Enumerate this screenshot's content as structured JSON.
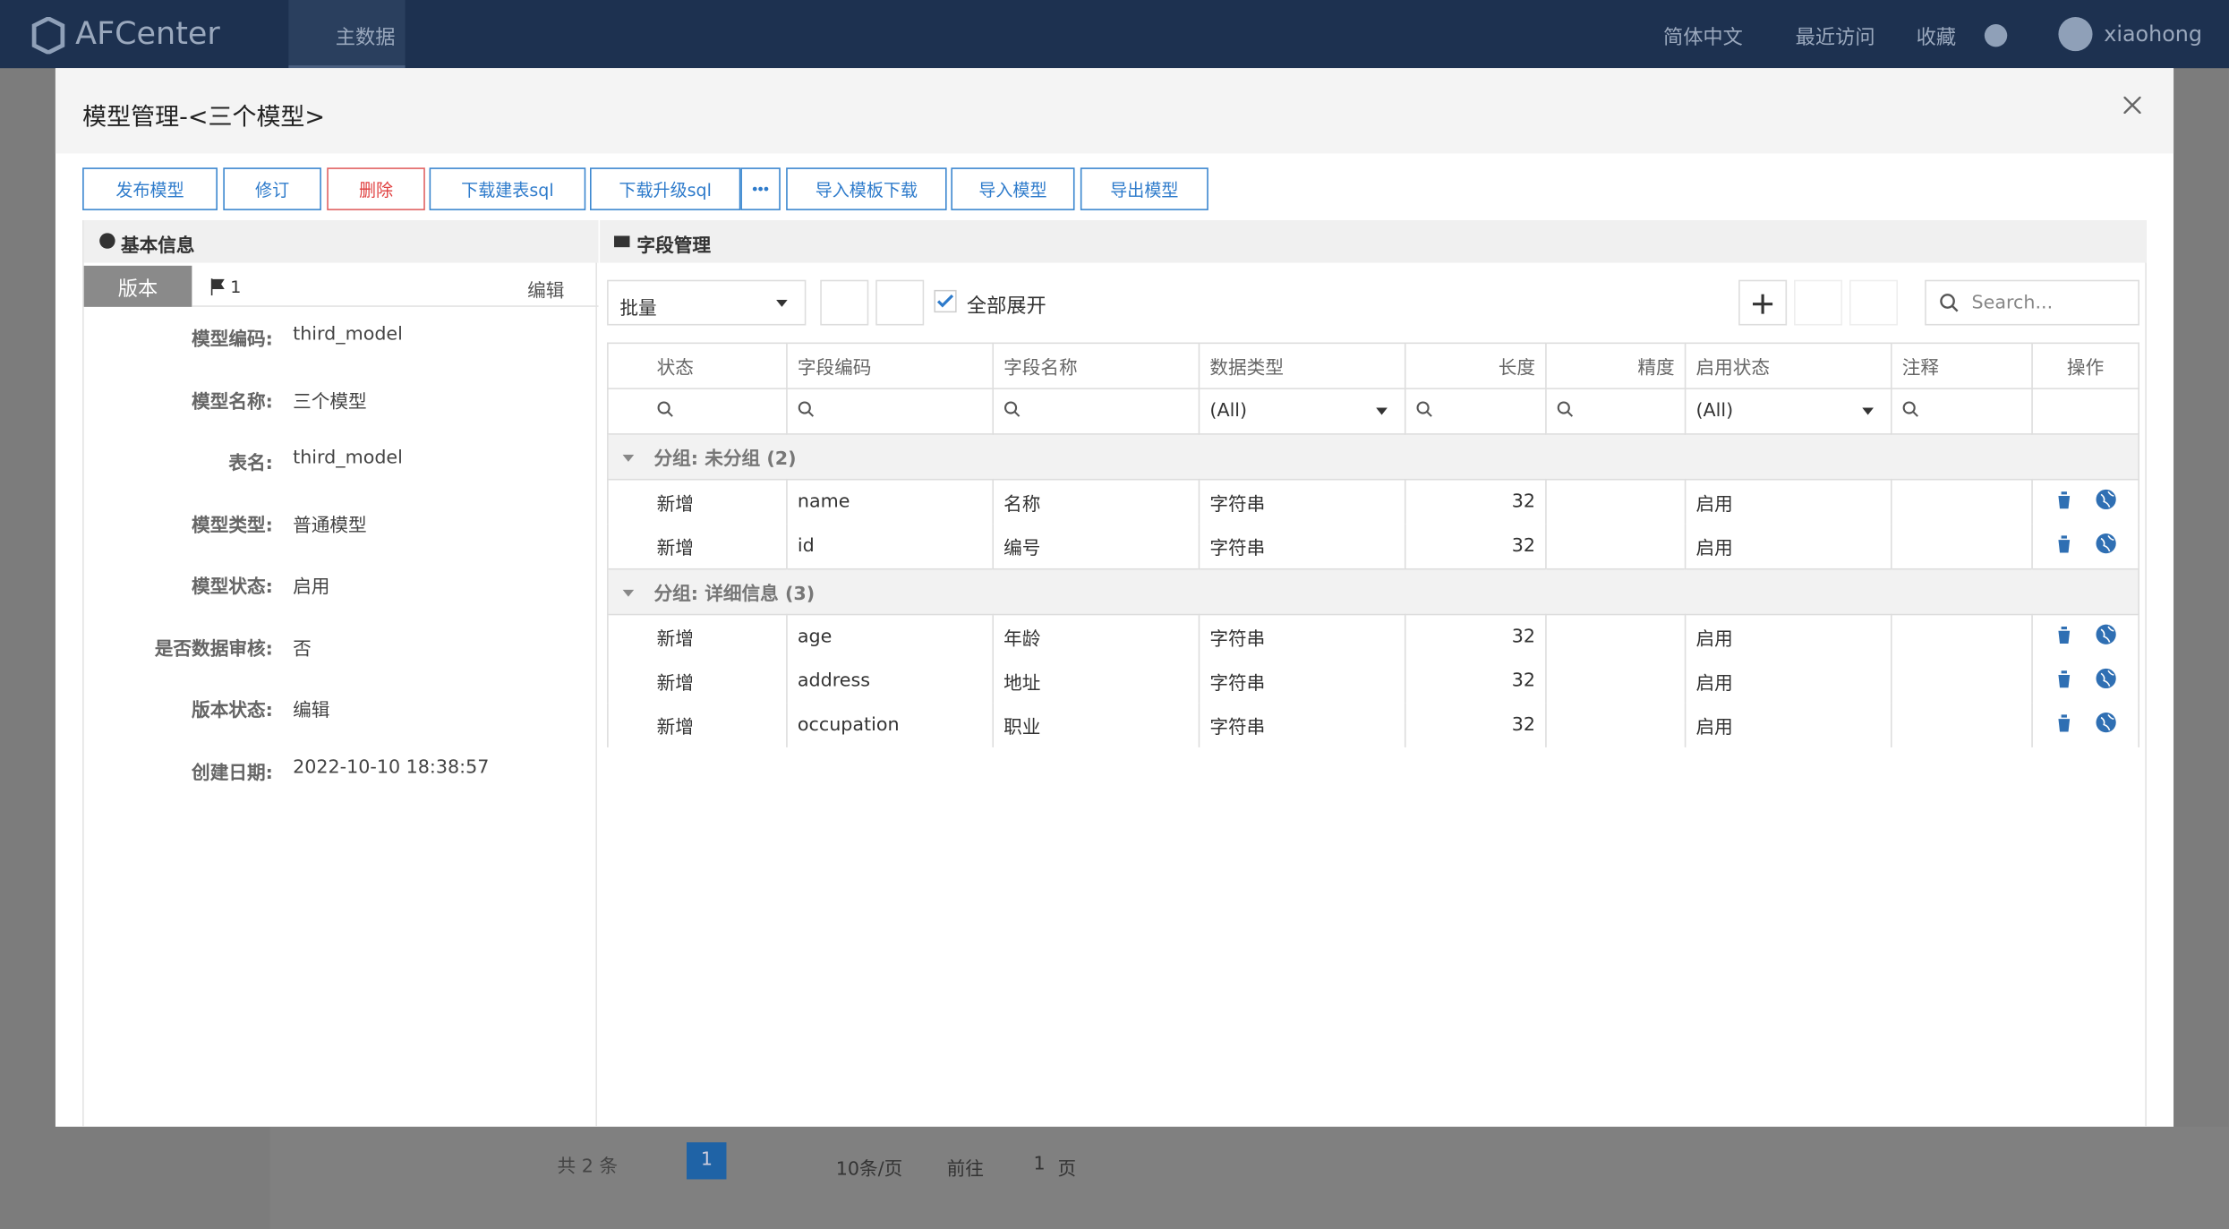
{
  "header": {
    "logo": "AFCenter",
    "nav": "主数据",
    "language": "简体中文",
    "recent": "最近访问",
    "favorites": "收藏",
    "user": "xiaohong"
  },
  "background_pagination": {
    "total": "共 2 条",
    "page": "1",
    "page_size": "10条/页",
    "goto": "前往",
    "goto_page": "1",
    "page_unit": "页"
  },
  "modal": {
    "title": "模型管理-<三个模型>",
    "toolbar": [
      "发布模型",
      "修订",
      "删除",
      "下载建表sql",
      "下载升级sql",
      "导入模板下载",
      "导入模型",
      "导出模型"
    ],
    "basic_info": {
      "title": "基本信息",
      "version_tab": "版本",
      "version": "1",
      "edit": "编辑",
      "fields": [
        {
          "label": "模型编码:",
          "value": "third_model"
        },
        {
          "label": "模型名称:",
          "value": "三个模型"
        },
        {
          "label": "表名:",
          "value": "third_model"
        },
        {
          "label": "模型类型:",
          "value": "普通模型"
        },
        {
          "label": "模型状态:",
          "value": "启用"
        },
        {
          "label": "是否数据审核:",
          "value": "否"
        },
        {
          "label": "版本状态:",
          "value": "编辑"
        },
        {
          "label": "创建日期:",
          "value": "2022-10-10 18:38:57"
        }
      ]
    },
    "field_management": {
      "title": "字段管理",
      "batch": "批量",
      "expand_all": "全部展开",
      "search_placeholder": "Search...",
      "columns": [
        "状态",
        "字段编码",
        "字段名称",
        "数据类型",
        "长度",
        "精度",
        "启用状态",
        "注释",
        "操作"
      ],
      "filters": {
        "data_type": "(All)",
        "status": "(All)"
      },
      "groups": [
        {
          "label": "分组: 未分组 (2)",
          "rows": [
            {
              "state": "新增",
              "code": "name",
              "name": "名称",
              "type": "字符串",
              "length": 32,
              "status": "启用"
            },
            {
              "state": "新增",
              "code": "id",
              "name": "编号",
              "type": "字符串",
              "length": 32,
              "status": "启用"
            }
          ]
        },
        {
          "label": "分组: 详细信息 (3)",
          "rows": [
            {
              "state": "新增",
              "code": "age",
              "name": "年龄",
              "type": "字符串",
              "length": 32,
              "status": "启用"
            },
            {
              "state": "新增",
              "code": "address",
              "name": "地址",
              "type": "字符串",
              "length": 32,
              "status": "启用"
            },
            {
              "state": "新增",
              "code": "occupation",
              "name": "职业",
              "type": "字符串",
              "length": 32,
              "status": "启用"
            }
          ]
        }
      ]
    }
  }
}
